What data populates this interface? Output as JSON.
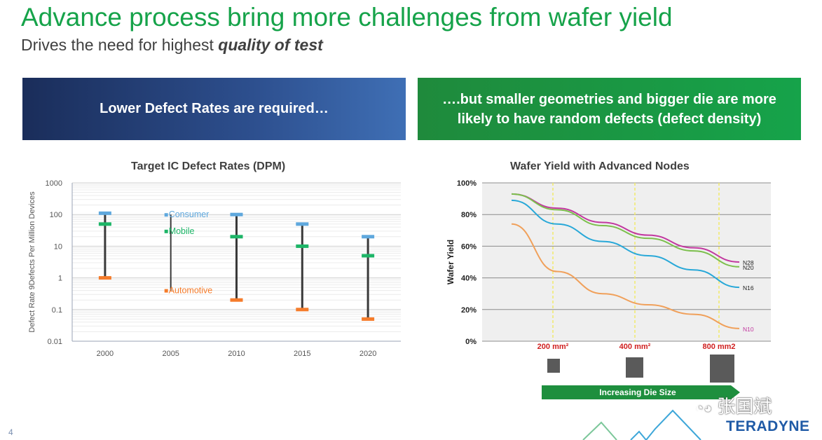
{
  "slide": {
    "title": "Advance process bring more challenges from wafer yield",
    "subtitle_prefix": "Drives the need for highest ",
    "subtitle_emphasis": "quality of test",
    "page_number": "4",
    "logo_text": "TERADYNE",
    "watermark_text": "张国斌"
  },
  "banners": {
    "left": "Lower Defect Rates are required…",
    "right": "….but smaller geometries and bigger die are more likely to have random defects (defect density)"
  },
  "colors": {
    "consumer": "#5fa8dd",
    "mobile": "#1db567",
    "automotive": "#f57c2b",
    "n28": "#c2379f",
    "n20": "#7cbf4d",
    "n16": "#28a8d8",
    "n10": "#f0a05a"
  },
  "chart_data": [
    {
      "type": "scatter",
      "title": "Target IC Defect Rates (DPM)",
      "ylabel": "Defect Rate 9Defects Per Million Devices",
      "xlabel": "",
      "yscale": "log",
      "ylim": [
        0.01,
        1000
      ],
      "yticks": [
        "1000",
        "100",
        "10",
        "1",
        "0.1",
        "0.01"
      ],
      "categories": [
        "2000",
        "2005",
        "2010",
        "2015",
        "2020"
      ],
      "series": [
        {
          "name": "Consumer",
          "values": [
            110,
            100,
            100,
            50,
            20
          ]
        },
        {
          "name": "Mobile",
          "values": [
            50,
            30,
            20,
            10,
            5
          ]
        },
        {
          "name": "Automotive",
          "values": [
            1,
            0.4,
            0.2,
            0.1,
            0.05
          ]
        }
      ],
      "legend": [
        "Consumer",
        "Mobile",
        "Automotive"
      ]
    },
    {
      "type": "line",
      "title": "Wafer Yield with Advanced Nodes",
      "ylabel": "Wafer Yield",
      "xlabel": "Increasing Die Size",
      "ylim": [
        0,
        100
      ],
      "yticks": [
        "100%",
        "80%",
        "60%",
        "40%",
        "20%",
        "0%"
      ],
      "xticks": [
        "200 mm²",
        "400 mm²",
        "800 mm2"
      ],
      "x": [
        0,
        200,
        400,
        600,
        800,
        1000
      ],
      "series": [
        {
          "name": "N28",
          "values": [
            93,
            84,
            75,
            67,
            59,
            50
          ]
        },
        {
          "name": "N20",
          "values": [
            93,
            83,
            73,
            65,
            57,
            47
          ]
        },
        {
          "name": "N16",
          "values": [
            89,
            74,
            63,
            54,
            45,
            34
          ]
        },
        {
          "name": "N10",
          "values": [
            74,
            44,
            30,
            23,
            17,
            8
          ]
        }
      ]
    }
  ]
}
